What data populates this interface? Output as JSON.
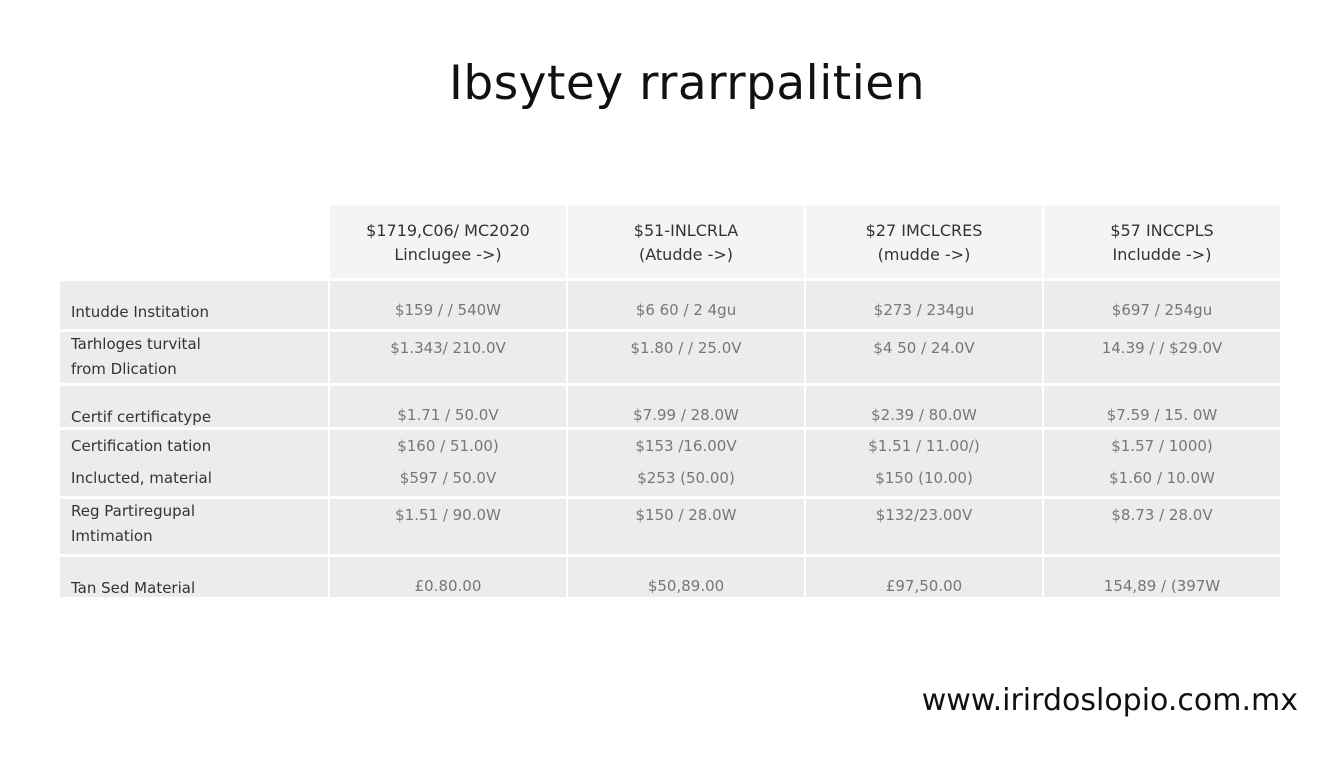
{
  "title": "Ibsytey rrarrpalitien",
  "table": {
    "headers": [
      {
        "line1": "$1719,C06/ MC2020",
        "line2": "Linclugee ->)"
      },
      {
        "line1": "$51-INLCRLA",
        "line2": "(Atudde ->)"
      },
      {
        "line1": "$27 IMCLCRES",
        "line2": "(mudde ->)"
      },
      {
        "line1": "$57 INCCPLS",
        "line2": "Includde ->)"
      }
    ],
    "rows": [
      {
        "label": [
          "Intudde Institation"
        ],
        "values": [
          [
            "$159 / / 540W"
          ],
          [
            "$6 60 / 2 4gu"
          ],
          [
            "$273 / 234gu"
          ],
          [
            "$697 / 254gu"
          ]
        ]
      },
      {
        "label": [
          "Tarhloges turvital",
          "from Dlication"
        ],
        "values": [
          [
            "$1.343/ 210.0V"
          ],
          [
            "$1.80 / / 25.0V"
          ],
          [
            "$4 50 / 24.0V"
          ],
          [
            "14.39 / / $29.0V"
          ]
        ]
      },
      {
        "label": [
          "Certif certificatype"
        ],
        "values": [
          [
            "$1.71 / 50.0V"
          ],
          [
            "$7.99 / 28.0W"
          ],
          [
            "$2.39 / 80.0W"
          ],
          [
            "$7.59 / 15. 0W"
          ]
        ]
      },
      {
        "label": [
          "Certification tation",
          "Inclucted, material"
        ],
        "values": [
          [
            "$160 / 51.00)",
            "$597 / 50.0V"
          ],
          [
            "$153 /16.00V",
            "$253 (50.00)"
          ],
          [
            "$1.51 / 11.00/)",
            "$150 (10.00)"
          ],
          [
            "$1.57 / 1000)",
            "$1.60 / 10.0W"
          ]
        ]
      },
      {
        "label": [
          "Reg Partiregupal",
          "Imtimation"
        ],
        "values": [
          [
            "$1.51 / 90.0W"
          ],
          [
            "$150 / 28.0W"
          ],
          [
            "$132/23.00V"
          ],
          [
            "$8.73 / 28.0V"
          ]
        ]
      },
      {
        "label": [
          "Tan Sed Material"
        ],
        "values": [
          [
            "£0.80.00"
          ],
          [
            "$50,89.00"
          ],
          [
            "£97,50.00"
          ],
          [
            "154,89 / (397W"
          ]
        ]
      }
    ]
  },
  "footer": {
    "url": "www.irirdoslopio.com.mx"
  }
}
